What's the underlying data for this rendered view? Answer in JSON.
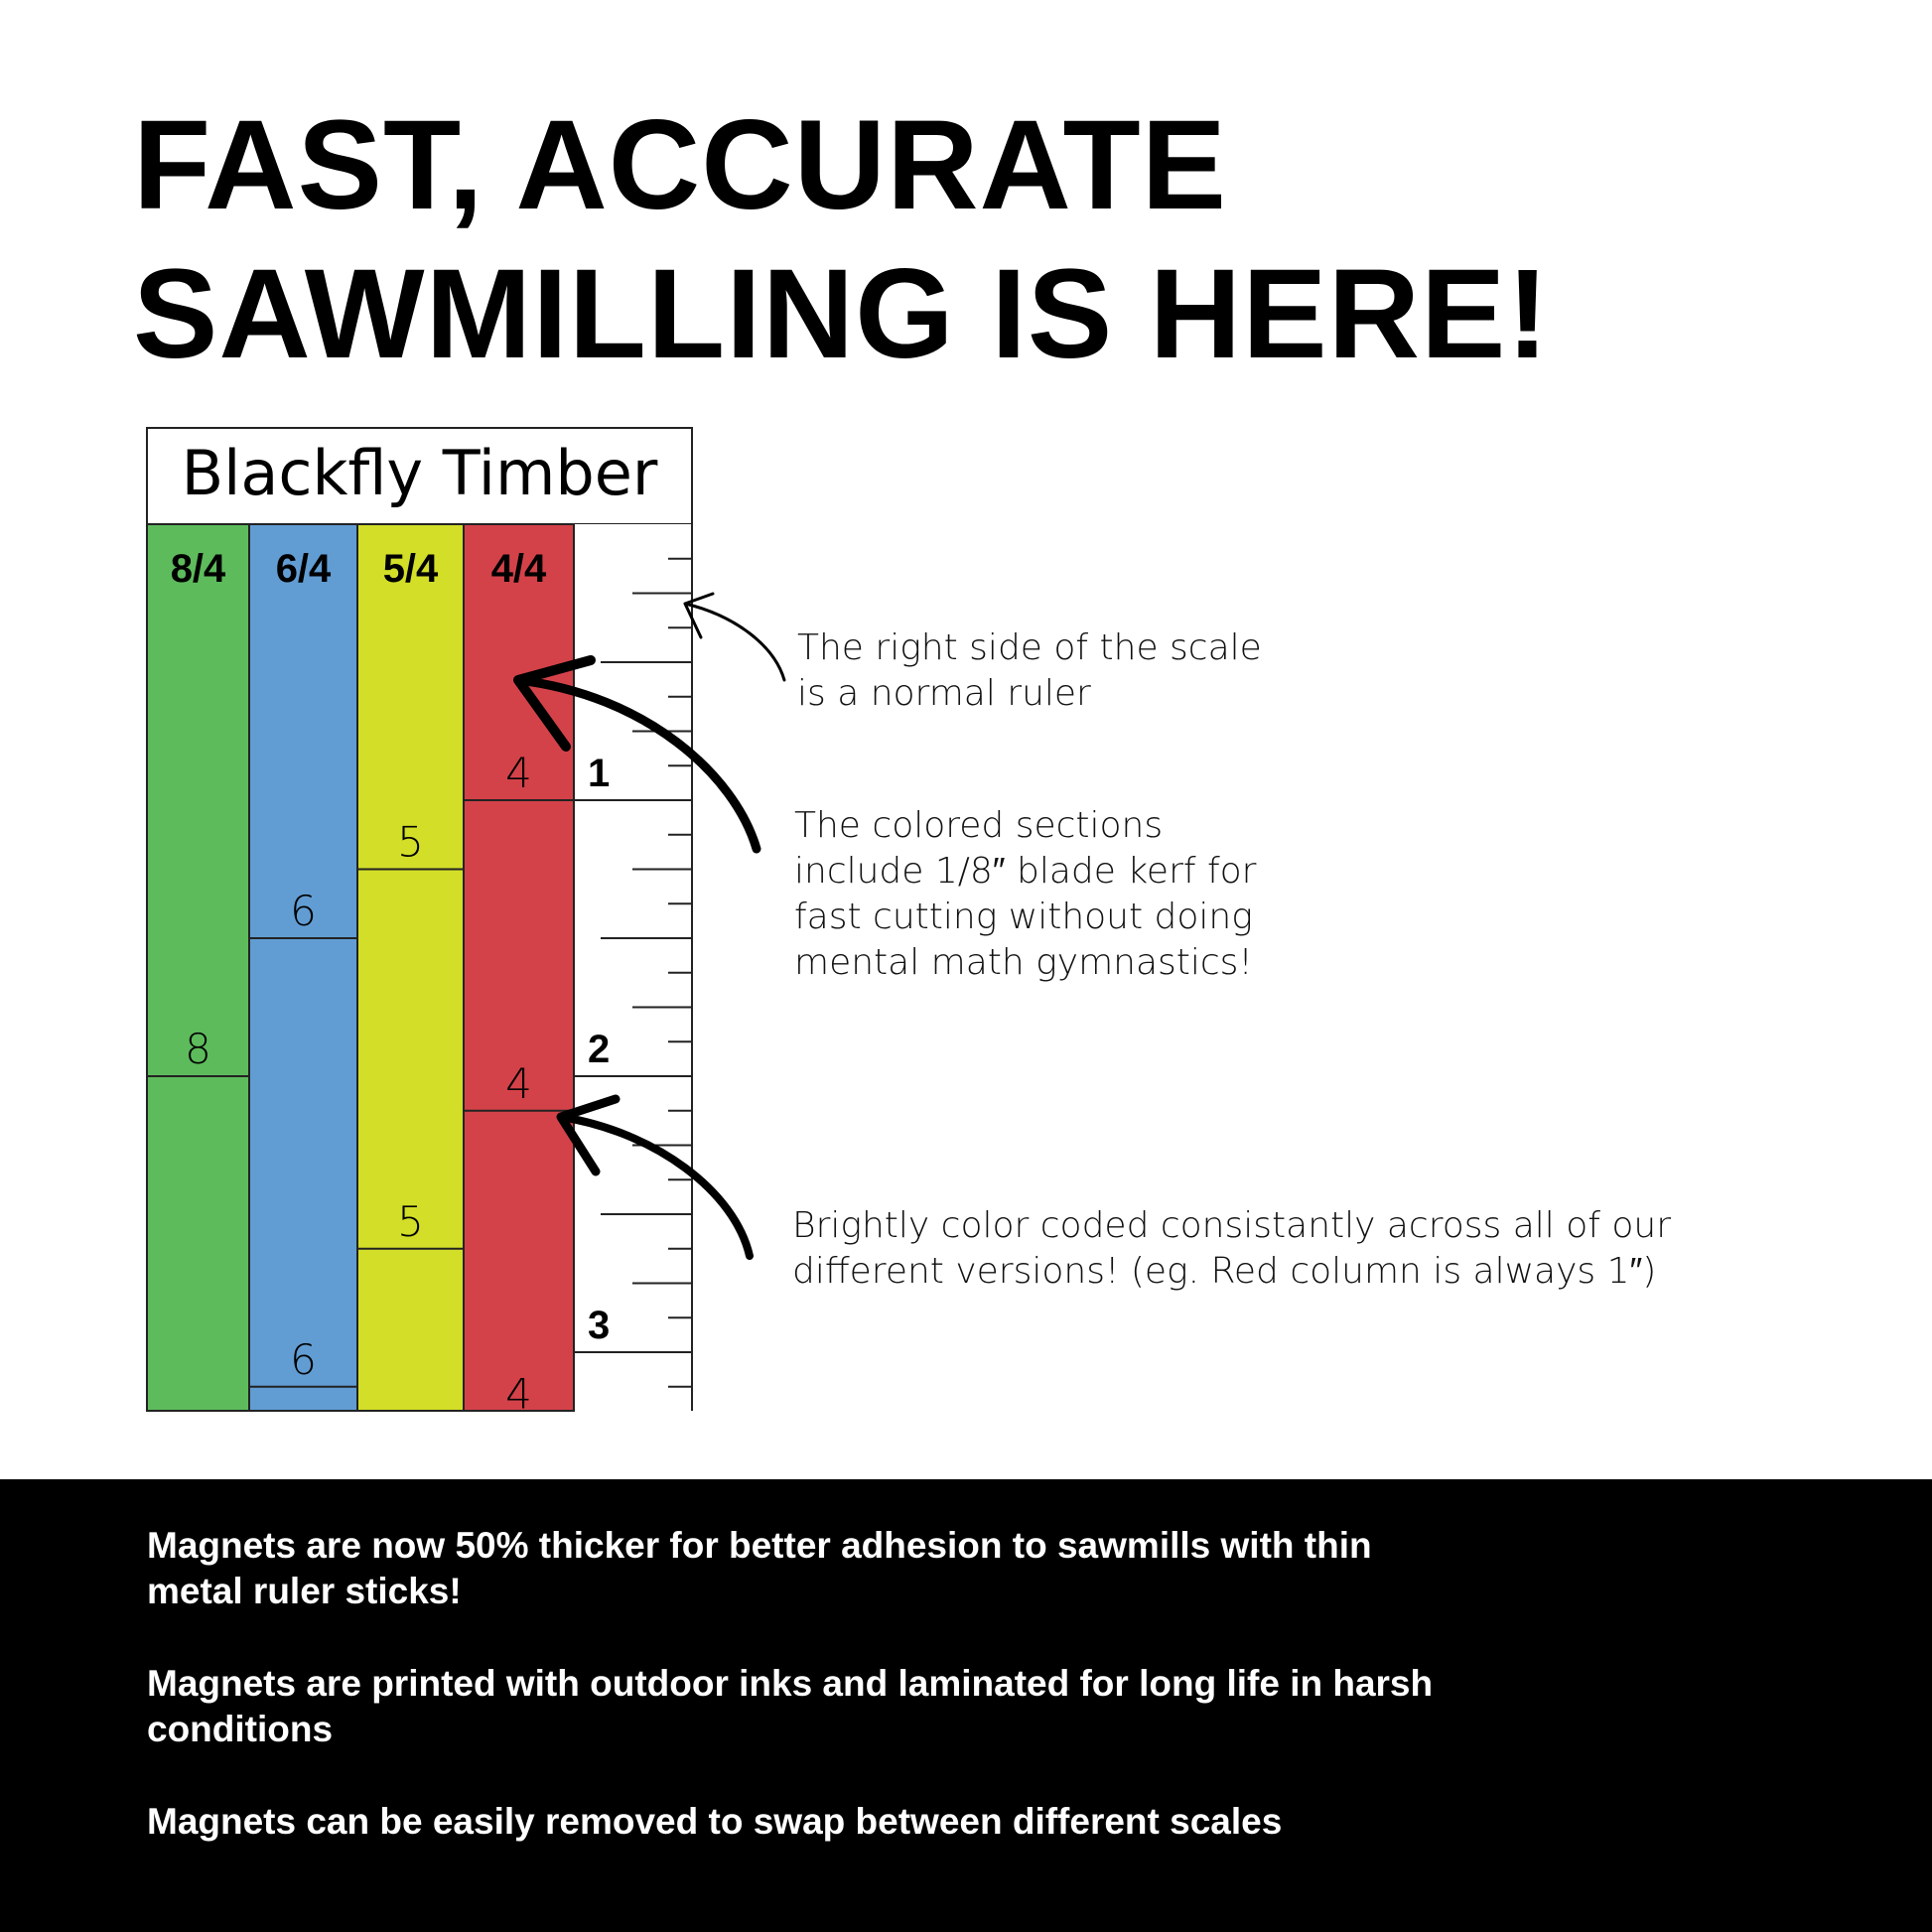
{
  "headline": {
    "line1": "FAST, ACCURATE",
    "line2": "SAWMILLING IS HERE!"
  },
  "scale": {
    "brand": "Blackfly Timber",
    "kerf_inches": 0.125,
    "columns": [
      {
        "label": "8/4",
        "section_label": "8",
        "color": "#5dbb5c",
        "nominal_inches": 2
      },
      {
        "label": "6/4",
        "section_label": "6",
        "color": "#619dd3",
        "nominal_inches": 1.5
      },
      {
        "label": "5/4",
        "section_label": "5",
        "color": "#d2de28",
        "nominal_inches": 1.25
      },
      {
        "label": "4/4",
        "section_label": "4",
        "color": "#d44249",
        "nominal_inches": 1
      }
    ],
    "ruler_numbers": [
      "1",
      "2",
      "3"
    ]
  },
  "annotations": {
    "ruler": [
      "The right side of the scale",
      "is a normal ruler"
    ],
    "kerf": [
      "The colored sections",
      "include 1/8″ blade kerf for",
      "fast cutting without doing",
      "mental math gymnastics!"
    ],
    "color": [
      "Brightly color coded consistantly across all of our",
      "different versions! (eg. Red column is always 1″)"
    ]
  },
  "features": [
    "Magnets are now 50% thicker for better adhesion to sawmills with thin metal ruler sticks!",
    "Magnets are printed with outdoor inks and laminated for long life in harsh conditions",
    "Magnets can be easily removed to swap between different scales"
  ]
}
